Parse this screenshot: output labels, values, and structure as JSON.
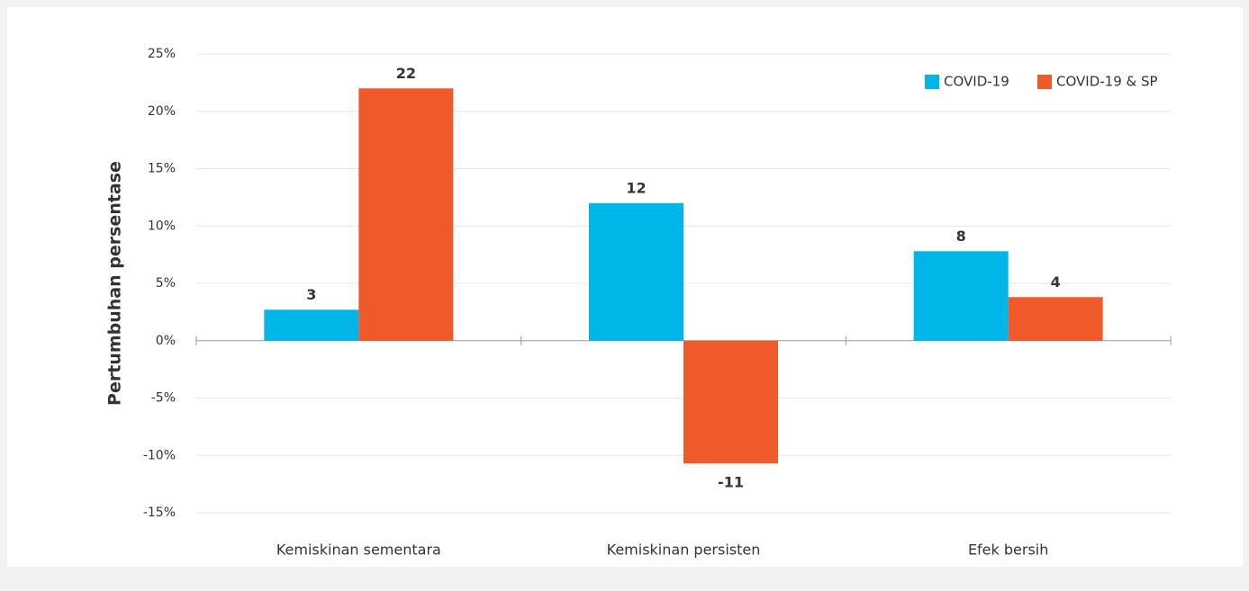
{
  "chart_data": {
    "type": "bar",
    "y_label": "Pertumbuhan persentase",
    "categories": [
      "Kemiskinan sementara",
      "Kemiskinan persisten",
      "Efek bersih"
    ],
    "series": [
      {
        "name": "COVID-19",
        "color": "#00b5e8",
        "values": [
          2.7,
          12,
          7.8
        ],
        "value_labels": [
          "3",
          "12",
          "8"
        ]
      },
      {
        "name": "COVID-19 & SP",
        "color": "#f05a2a",
        "values": [
          22,
          -10.7,
          3.8
        ],
        "value_labels": [
          "22",
          "-11",
          "4"
        ]
      }
    ],
    "ylim": [
      -15,
      25
    ],
    "yticks": [
      {
        "value": 25,
        "label": "25%"
      },
      {
        "value": 20,
        "label": "20%"
      },
      {
        "value": 15,
        "label": "15%"
      },
      {
        "value": 10,
        "label": "10%"
      },
      {
        "value": 5,
        "label": "5%"
      },
      {
        "value": 0,
        "label": "0%"
      },
      {
        "value": -5,
        "label": "-5%"
      },
      {
        "value": -10,
        "label": "-10%"
      },
      {
        "value": -15,
        "label": "-15%"
      }
    ],
    "grid": true,
    "legend": "top-right"
  }
}
